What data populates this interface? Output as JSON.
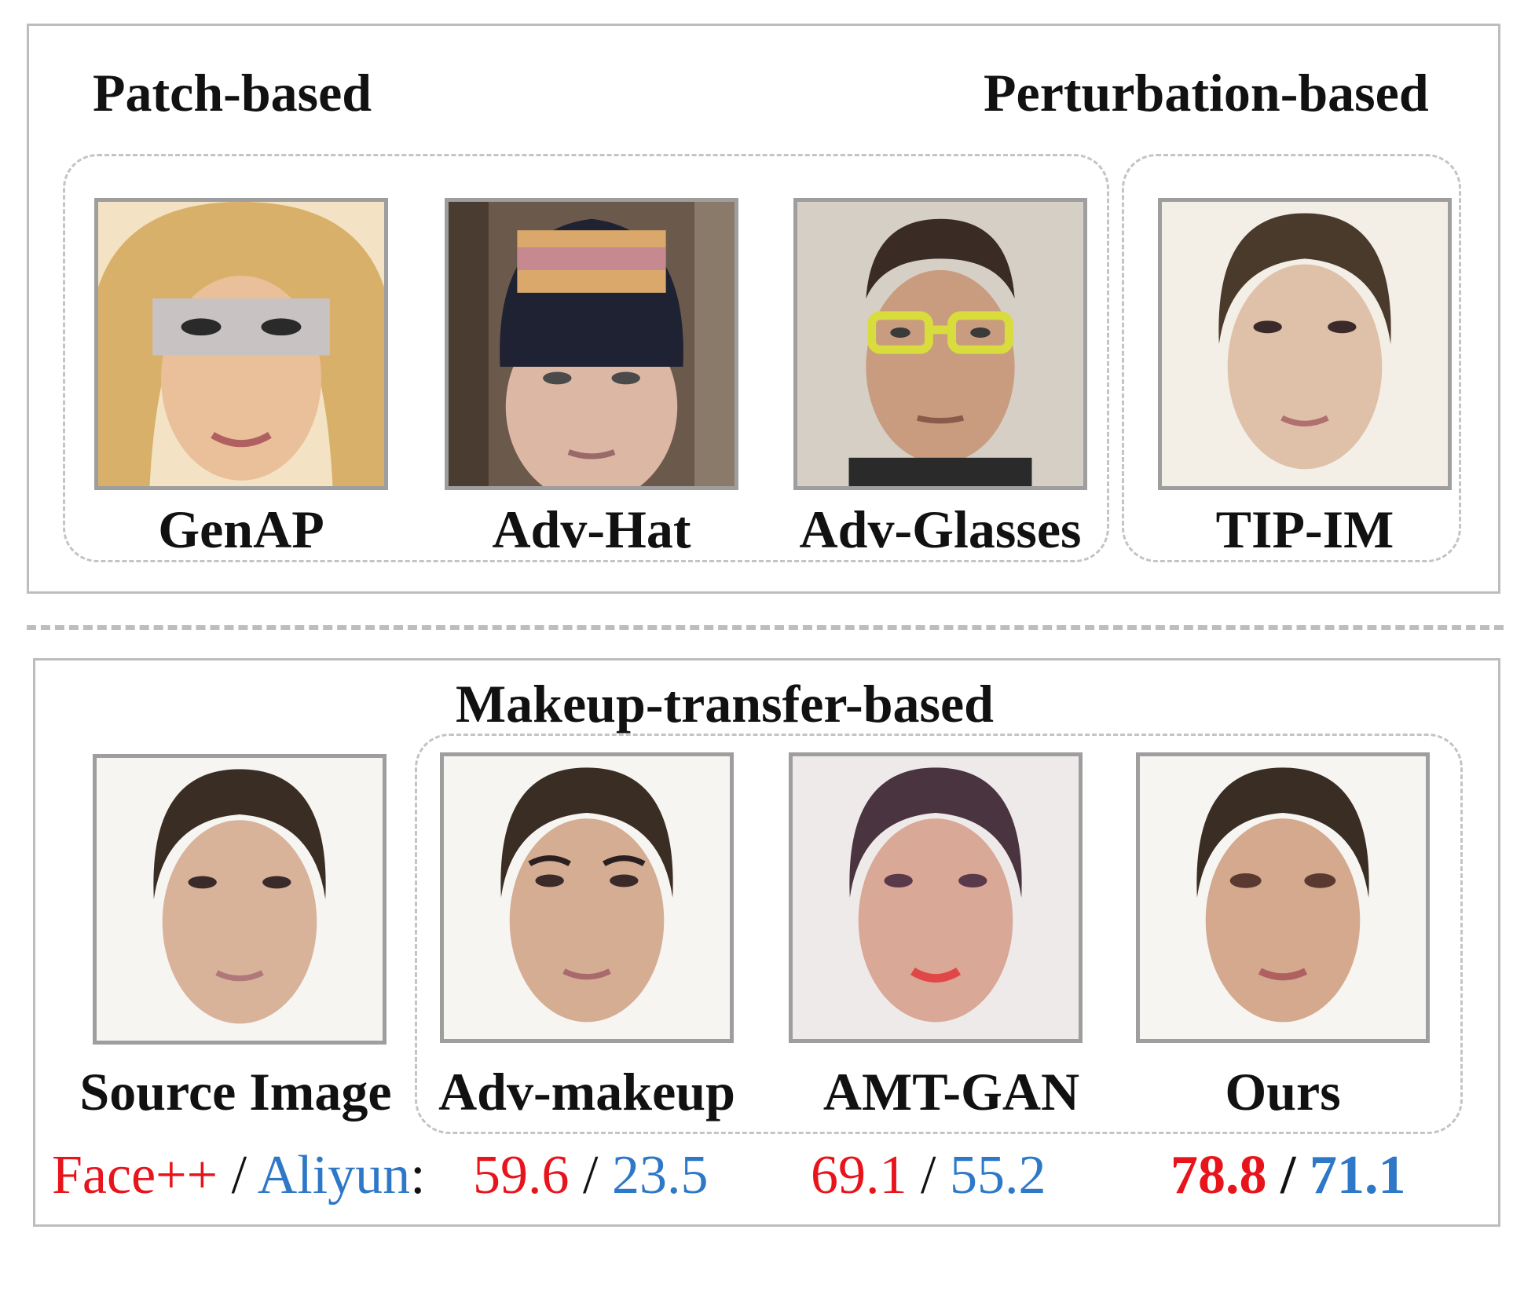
{
  "top": {
    "patch_title": "Patch-based",
    "perturbation_title": "Perturbation-based",
    "items": [
      {
        "label": "GenAP"
      },
      {
        "label": "Adv-Hat"
      },
      {
        "label": "Adv-Glasses"
      },
      {
        "label": "TIP-IM"
      }
    ]
  },
  "bottom": {
    "makeup_title": "Makeup-transfer-based",
    "items": [
      {
        "label": "Source Image"
      },
      {
        "label": "Adv-makeup"
      },
      {
        "label": "AMT-GAN"
      },
      {
        "label": "Ours"
      }
    ]
  },
  "scores": {
    "face_label": "Face++",
    "sep": "/",
    "aliyun_label": "Aliyun",
    "colon": ":",
    "entries": [
      {
        "face": "59.6",
        "aliyun": "23.5"
      },
      {
        "face": "69.1",
        "aliyun": "55.2"
      },
      {
        "face": "78.8",
        "aliyun": "71.1"
      }
    ]
  },
  "colors": {
    "face": "#e8141c",
    "aliyun": "#2e78c8"
  }
}
